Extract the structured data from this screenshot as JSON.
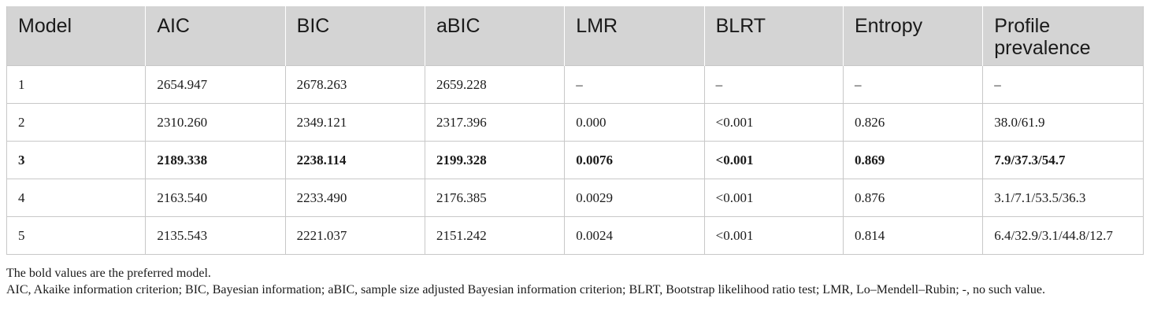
{
  "table": {
    "headers": [
      "Model",
      "AIC",
      "BIC",
      "aBIC",
      "LMR",
      "BLRT",
      "Entropy",
      "Profile prevalence"
    ],
    "rows": [
      [
        "1",
        "2654.947",
        "2678.263",
        "2659.228",
        "–",
        "–",
        "–",
        "–"
      ],
      [
        "2",
        "2310.260",
        "2349.121",
        "2317.396",
        "0.000",
        "<0.001",
        "0.826",
        "38.0/61.9"
      ],
      [
        "3",
        "2189.338",
        "2238.114",
        "2199.328",
        "0.0076",
        "<0.001",
        "0.869",
        "7.9/37.3/54.7"
      ],
      [
        "4",
        "2163.540",
        "2233.490",
        "2176.385",
        "0.0029",
        "<0.001",
        "0.876",
        "3.1/7.1/53.5/36.3"
      ],
      [
        "5",
        "2135.543",
        "2221.037",
        "2151.242",
        "0.0024",
        "<0.001",
        "0.814",
        "6.4/32.9/3.1/44.8/12.7"
      ]
    ],
    "bold_row": "3"
  },
  "notes": {
    "line1": "The bold values are the preferred model.",
    "line2": "AIC, Akaike information criterion; BIC, Bayesian information; aBIC, sample size adjusted Bayesian information criterion; BLRT, Bootstrap likelihood ratio test; LMR, Lo–Mendell–Rubin; -, no such value."
  },
  "colors": {
    "header_bg": "#d4d4d4",
    "border": "#c8c8c8",
    "text": "#1a1a1a"
  }
}
